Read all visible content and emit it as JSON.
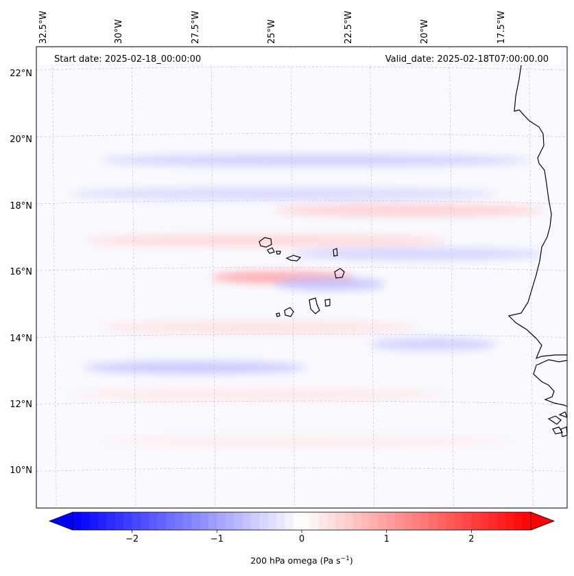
{
  "map": {
    "start_date": "Start date: 2025-02-18_00:00:00",
    "valid_date": "Valid_date: 2025-02-18T07:00:00.00",
    "lon_labels": [
      "32.5°W",
      "30°W",
      "27.5°W",
      "25°W",
      "22.5°W",
      "20°W",
      "17.5°W"
    ],
    "lat_labels": [
      "22°N",
      "20°N",
      "18°N",
      "16°N",
      "14°N",
      "12°N",
      "10°N"
    ],
    "extent": {
      "lon_min": -33.0,
      "lon_max": -16.3,
      "lat_min": 8.9,
      "lat_max": 22.7
    },
    "field": "200 hPa omega",
    "bands": [
      {
        "lat": 19.3,
        "lon_west": -31.0,
        "lon_east": -17.5,
        "omega": -0.55
      },
      {
        "lat": 18.3,
        "lon_west": -32.0,
        "lon_east": -18.5,
        "omega": -0.45
      },
      {
        "lat": 17.8,
        "lon_west": -25.5,
        "lon_east": -17.0,
        "omega": 0.55
      },
      {
        "lat": 16.9,
        "lon_west": -31.5,
        "lon_east": -20.0,
        "omega": 0.45
      },
      {
        "lat": 16.5,
        "lon_west": -25.0,
        "lon_east": -17.0,
        "omega": -0.5
      },
      {
        "lat": 15.8,
        "lon_west": -27.5,
        "lon_east": -23.0,
        "omega": 1.0
      },
      {
        "lat": 15.6,
        "lon_west": -25.5,
        "lon_east": -22.0,
        "omega": -0.7
      },
      {
        "lat": 14.3,
        "lon_west": -31.0,
        "lon_east": -21.0,
        "omega": 0.35
      },
      {
        "lat": 13.8,
        "lon_west": -22.5,
        "lon_east": -18.5,
        "omega": -0.55
      },
      {
        "lat": 13.1,
        "lon_west": -31.5,
        "lon_east": -24.5,
        "omega": -0.65
      },
      {
        "lat": 12.3,
        "lon_west": -32.0,
        "lon_east": -20.0,
        "omega": 0.25
      },
      {
        "lat": 10.9,
        "lon_west": -31.0,
        "lon_east": -18.0,
        "omega": 0.2
      }
    ]
  },
  "colorbar": {
    "label": "200 hPa omega (Pa s",
    "label_exponent": "−1",
    "label_suffix": ")",
    "vmin": -2.7,
    "vmax": 2.7,
    "ticks": [
      -2,
      -1,
      0,
      1,
      2
    ],
    "tick_labels": [
      "−2",
      "−1",
      "0",
      "1",
      "2"
    ],
    "neg_color": "#0000ff",
    "mid_color": "#ffffff",
    "pos_color": "#ff0000"
  }
}
